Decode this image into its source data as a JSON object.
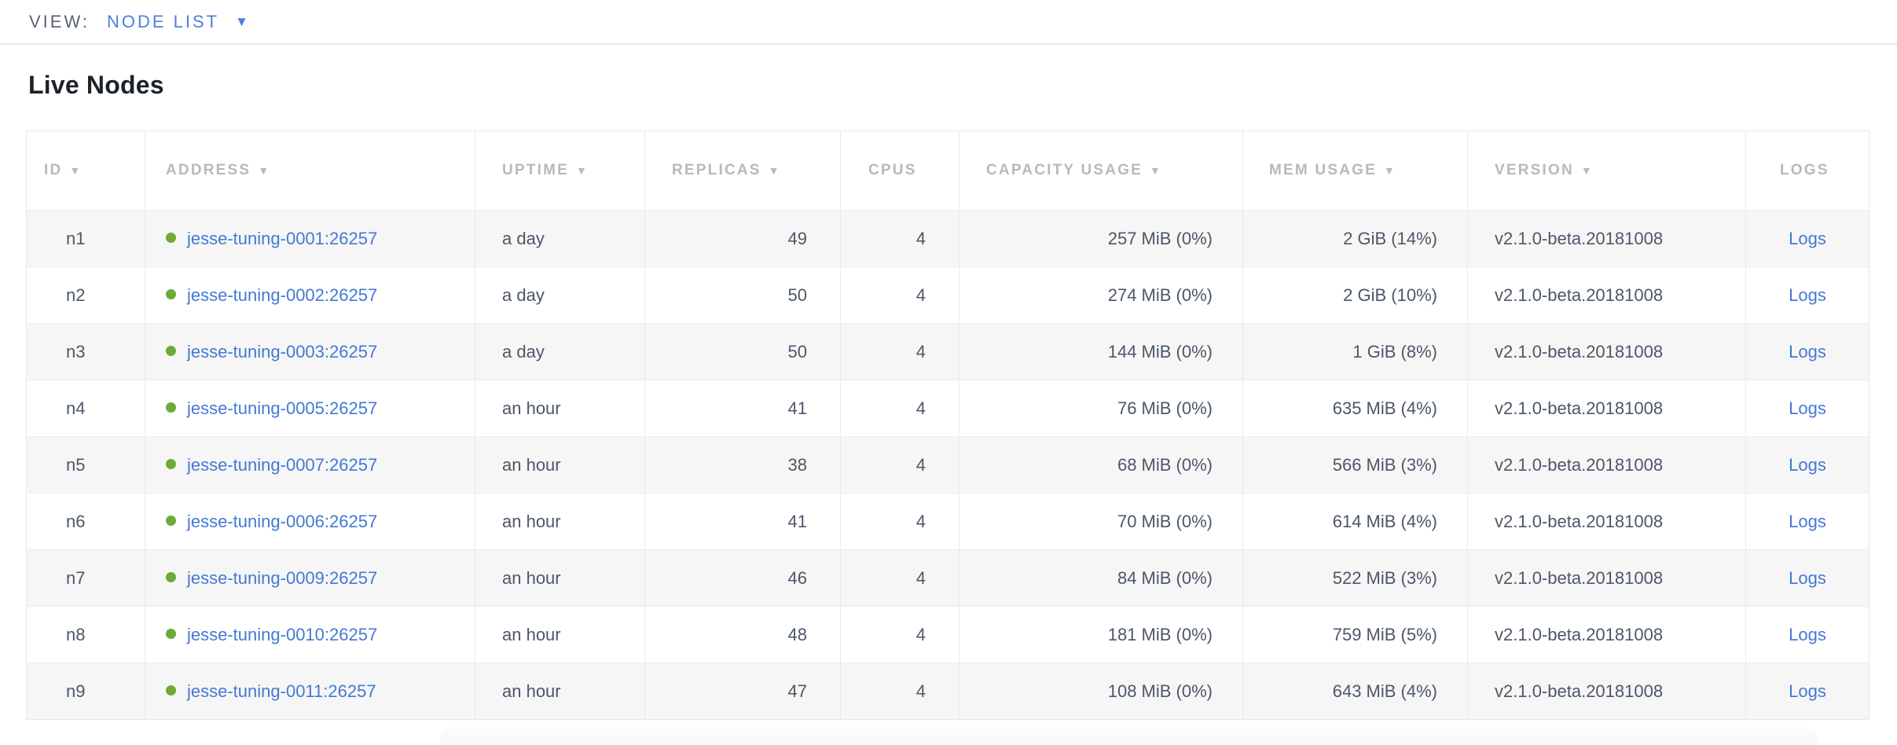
{
  "view_bar": {
    "label": "VIEW:",
    "selected_view": "NODE LIST"
  },
  "page": {
    "section_title": "Live Nodes"
  },
  "icons": {
    "dropdown_arrow": "▼",
    "sort_arrow": "▼",
    "status_dot": "live-green-dot"
  },
  "colors": {
    "link_blue": "#4479d4",
    "view_blue": "#4a80e0",
    "live_dot_green": "#6eaa38",
    "header_gray": "#b6b9be",
    "cell_text": "#4c5769",
    "row_alt_bg": "#f6f6f6"
  },
  "table": {
    "columns": [
      {
        "key": "id",
        "label": "ID",
        "sortable": true
      },
      {
        "key": "address",
        "label": "ADDRESS",
        "sortable": true
      },
      {
        "key": "uptime",
        "label": "UPTIME",
        "sortable": true
      },
      {
        "key": "replicas",
        "label": "REPLICAS",
        "sortable": true
      },
      {
        "key": "cpus",
        "label": "CPUS",
        "sortable": false
      },
      {
        "key": "capacity",
        "label": "CAPACITY USAGE",
        "sortable": true
      },
      {
        "key": "mem",
        "label": "MEM USAGE",
        "sortable": true
      },
      {
        "key": "version",
        "label": "VERSION",
        "sortable": true
      },
      {
        "key": "logs",
        "label": "LOGS",
        "sortable": false
      }
    ],
    "rows": [
      {
        "id": "n1",
        "address": "jesse-tuning-0001:26257",
        "uptime": "a day",
        "replicas": "49",
        "cpus": "4",
        "capacity": "257 MiB (0%)",
        "mem": "2 GiB (14%)",
        "version": "v2.1.0-beta.20181008",
        "logs": "Logs"
      },
      {
        "id": "n2",
        "address": "jesse-tuning-0002:26257",
        "uptime": "a day",
        "replicas": "50",
        "cpus": "4",
        "capacity": "274 MiB (0%)",
        "mem": "2 GiB (10%)",
        "version": "v2.1.0-beta.20181008",
        "logs": "Logs"
      },
      {
        "id": "n3",
        "address": "jesse-tuning-0003:26257",
        "uptime": "a day",
        "replicas": "50",
        "cpus": "4",
        "capacity": "144 MiB (0%)",
        "mem": "1 GiB (8%)",
        "version": "v2.1.0-beta.20181008",
        "logs": "Logs"
      },
      {
        "id": "n4",
        "address": "jesse-tuning-0005:26257",
        "uptime": "an hour",
        "replicas": "41",
        "cpus": "4",
        "capacity": "76 MiB (0%)",
        "mem": "635 MiB (4%)",
        "version": "v2.1.0-beta.20181008",
        "logs": "Logs"
      },
      {
        "id": "n5",
        "address": "jesse-tuning-0007:26257",
        "uptime": "an hour",
        "replicas": "38",
        "cpus": "4",
        "capacity": "68 MiB (0%)",
        "mem": "566 MiB (3%)",
        "version": "v2.1.0-beta.20181008",
        "logs": "Logs"
      },
      {
        "id": "n6",
        "address": "jesse-tuning-0006:26257",
        "uptime": "an hour",
        "replicas": "41",
        "cpus": "4",
        "capacity": "70 MiB (0%)",
        "mem": "614 MiB (4%)",
        "version": "v2.1.0-beta.20181008",
        "logs": "Logs"
      },
      {
        "id": "n7",
        "address": "jesse-tuning-0009:26257",
        "uptime": "an hour",
        "replicas": "46",
        "cpus": "4",
        "capacity": "84 MiB (0%)",
        "mem": "522 MiB (3%)",
        "version": "v2.1.0-beta.20181008",
        "logs": "Logs"
      },
      {
        "id": "n8",
        "address": "jesse-tuning-0010:26257",
        "uptime": "an hour",
        "replicas": "48",
        "cpus": "4",
        "capacity": "181 MiB (0%)",
        "mem": "759 MiB (5%)",
        "version": "v2.1.0-beta.20181008",
        "logs": "Logs"
      },
      {
        "id": "n9",
        "address": "jesse-tuning-0011:26257",
        "uptime": "an hour",
        "replicas": "47",
        "cpus": "4",
        "capacity": "108 MiB (0%)",
        "mem": "643 MiB (4%)",
        "version": "v2.1.0-beta.20181008",
        "logs": "Logs"
      }
    ]
  }
}
